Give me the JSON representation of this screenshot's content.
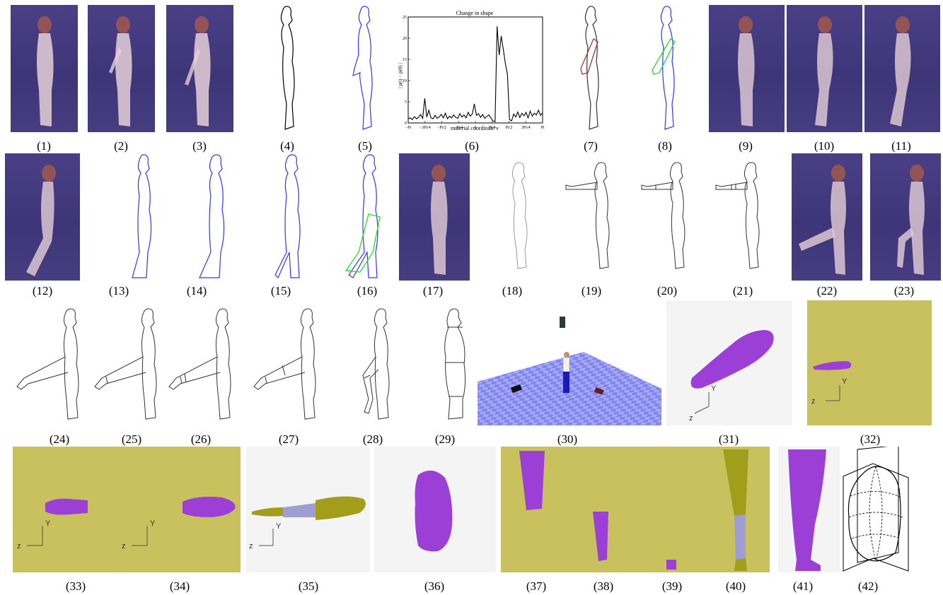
{
  "captions": [
    "(1)",
    "(2)",
    "(3)",
    "(4)",
    "(5)",
    "(6)",
    "(7)",
    "(8)",
    "(9)",
    "(10)",
    "(11)",
    "(12)",
    "(13)",
    "(14)",
    "(15)",
    "(16)",
    "(17)",
    "(18)",
    "(19)",
    "(20)",
    "(21)",
    "(22)",
    "(23)",
    "(24)",
    "(25)",
    "(26)",
    "(27)",
    "(28)",
    "(29)",
    "(30)",
    "(31)",
    "(32)",
    "(33)",
    "(34)",
    "(35)",
    "(36)",
    "(37)",
    "(38)",
    "(39)",
    "(40)",
    "(41)",
    "(42)"
  ],
  "axis_labels": {
    "y": "Y",
    "z": "z"
  },
  "chart_data": {
    "type": "line",
    "title": "Change in shape",
    "xlabel": "material coordinate v",
    "ylabel": "| p(t) − p(0) |",
    "xlim": [
      -3.1416,
      3.1416
    ],
    "ylim": [
      0,
      25
    ],
    "x_tick_labels": [
      "-Pi",
      "-3Pi/4",
      "-Pi/2",
      "-Pi/4",
      "0",
      "Pi/4",
      "Pi/2",
      "3Pi/4",
      "Pi"
    ],
    "y_tick_labels": [
      "0",
      "5",
      "10",
      "15",
      "20",
      "25"
    ],
    "series": [
      {
        "values": [
          1,
          1.2,
          0.8,
          1.5,
          1,
          1.3,
          2,
          1.1,
          5.8,
          1.4,
          3,
          1.2,
          1,
          1.8,
          1.1,
          1.4,
          2,
          1.2,
          2.3,
          1,
          1.6,
          1.2,
          1.9,
          1.3,
          1.1,
          2.2,
          1.4,
          1.9,
          1.2,
          2.5,
          1.6,
          2.1,
          4.5,
          1.8,
          2.2,
          1.3,
          2,
          1.1,
          1.5,
          1.9,
          1.2,
          0.5,
          0.3,
          22.8,
          16,
          20.5,
          17.3,
          14,
          11.5,
          0.8,
          0.5,
          2.1,
          1.4,
          2.6,
          1.3,
          2.3,
          1.7,
          2.5,
          1.2,
          2.8,
          1.6,
          2.3,
          1.9,
          3,
          1.8,
          2.4
        ]
      }
    ]
  },
  "colors": {
    "photo_bg": "#433a7e",
    "outline_blue": "#3333ff",
    "outline_green": "#33dd33",
    "outline_red": "#aa4444",
    "limb_purple": "#9b3fd6",
    "limb_olive": "#a29d1a",
    "limb_lavender": "#9e9ed2",
    "panel_yellow": "#c9c15e"
  }
}
